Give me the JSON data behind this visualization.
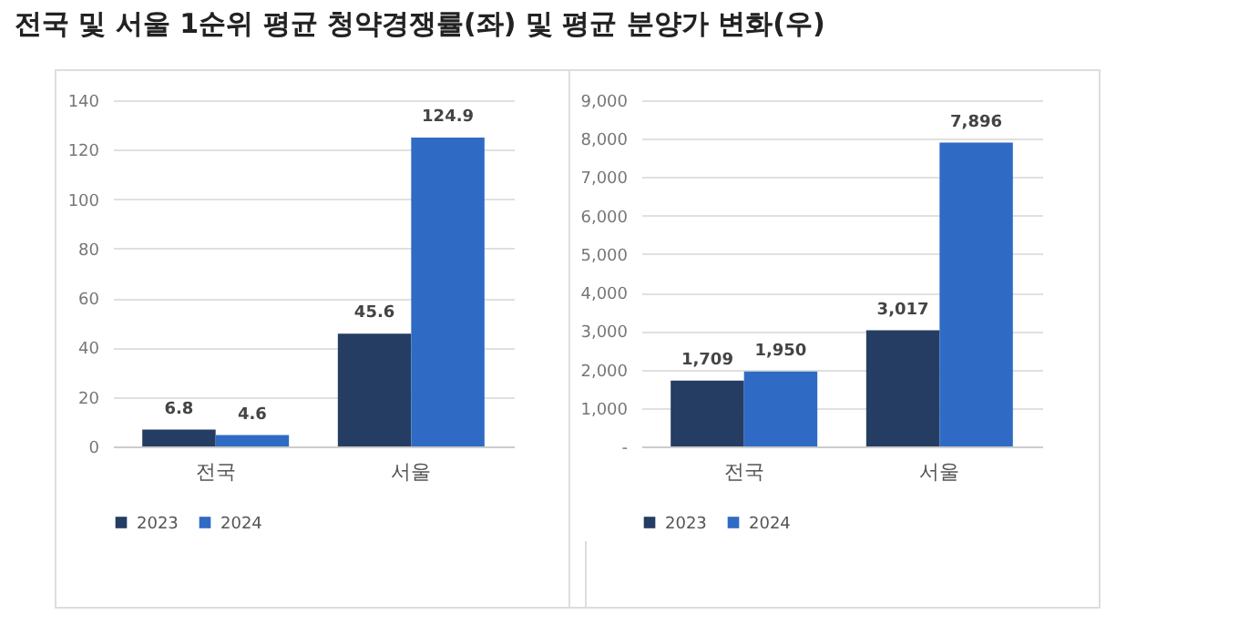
{
  "chart_data": [
    {
      "type": "bar",
      "title": "전국 및 서울 1순위 평균 청약경쟁률(좌) 및 평균 분양가 변화(우)",
      "categories": [
        "전국",
        "서울"
      ],
      "series": [
        {
          "name": "2023",
          "color": "#253d63",
          "values": [
            6.8,
            45.6
          ],
          "value_labels": [
            "6.8",
            "45.6"
          ]
        },
        {
          "name": "2024",
          "color": "#2f6bc4",
          "values": [
            4.6,
            124.9
          ],
          "value_labels": [
            "4.6",
            "124.9"
          ]
        }
      ],
      "ylim": [
        0,
        140
      ],
      "yticks": [
        0,
        20,
        40,
        60,
        80,
        100,
        120,
        140
      ],
      "grid": "y",
      "legend": "bottom"
    },
    {
      "type": "bar",
      "categories": [
        "전국",
        "서울"
      ],
      "series": [
        {
          "name": "2023",
          "color": "#253d63",
          "values": [
            1709,
            3017
          ],
          "value_labels": [
            "1,709",
            "3,017"
          ]
        },
        {
          "name": "2024",
          "color": "#2f6bc4",
          "values": [
            1950,
            7896
          ],
          "value_labels": [
            "1,950",
            "7,896"
          ]
        }
      ],
      "ylim": [
        0,
        9000
      ],
      "yticks": [
        {
          "value": 0,
          "label": "-"
        },
        {
          "value": 1000,
          "label": "1,000"
        },
        {
          "value": 2000,
          "label": "2,000"
        },
        {
          "value": 3000,
          "label": "3,000"
        },
        {
          "value": 4000,
          "label": "4,000"
        },
        {
          "value": 5000,
          "label": "5,000"
        },
        {
          "value": 6000,
          "label": "6,000"
        },
        {
          "value": 7000,
          "label": "7,000"
        },
        {
          "value": 8000,
          "label": "8,000"
        },
        {
          "value": 9000,
          "label": "9,000"
        }
      ],
      "grid": "y",
      "legend": "bottom"
    }
  ]
}
